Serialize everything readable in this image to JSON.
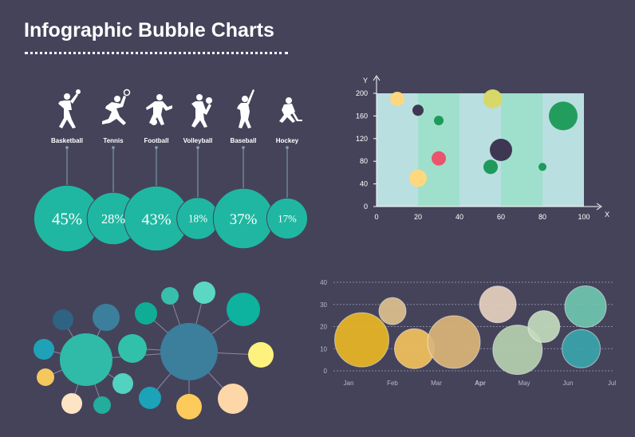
{
  "title": "Infographic Bubble Charts",
  "colors": {
    "background": "#45435a",
    "teal": "#1fb7a2"
  },
  "chart_data": [
    {
      "id": "sports",
      "type": "bubble",
      "categories": [
        "Basketball",
        "Tennis",
        "Football",
        "Volleyball",
        "Baseball",
        "Hockey"
      ],
      "values": [
        45,
        28,
        43,
        18,
        37,
        17
      ],
      "value_labels": [
        "45%",
        "28%",
        "43%",
        "18%",
        "37%",
        "17%"
      ]
    },
    {
      "id": "scatter",
      "type": "scatter",
      "xlabel": "X",
      "ylabel": "Y",
      "xlim": [
        0,
        100
      ],
      "ylim": [
        0,
        200
      ],
      "xticks": [
        "0",
        "20",
        "40",
        "60",
        "80",
        "100"
      ],
      "yticks": [
        "0",
        "40",
        "80",
        "120",
        "160",
        "200"
      ],
      "bands": [
        {
          "from": 0,
          "to": 20,
          "color": "#b9dfe1"
        },
        {
          "from": 20,
          "to": 40,
          "color": "#9fe0cc"
        },
        {
          "from": 40,
          "to": 60,
          "color": "#b9dfe1"
        },
        {
          "from": 60,
          "to": 80,
          "color": "#9fe0cc"
        },
        {
          "from": 80,
          "to": 100,
          "color": "#b9dfe1"
        }
      ],
      "points": [
        {
          "x": 10,
          "y": 190,
          "size": 9,
          "color": "#fdd87e"
        },
        {
          "x": 20,
          "y": 170,
          "size": 7,
          "color": "#3e3753"
        },
        {
          "x": 30,
          "y": 152,
          "size": 6,
          "color": "#1f9a5b"
        },
        {
          "x": 56,
          "y": 190,
          "size": 12,
          "color": "#d7d86a"
        },
        {
          "x": 90,
          "y": 160,
          "size": 18,
          "color": "#239d5e"
        },
        {
          "x": 60,
          "y": 100,
          "size": 14,
          "color": "#3e3753"
        },
        {
          "x": 30,
          "y": 85,
          "size": 9,
          "color": "#e8556c"
        },
        {
          "x": 55,
          "y": 70,
          "size": 9,
          "color": "#1f9a5b"
        },
        {
          "x": 80,
          "y": 70,
          "size": 5,
          "color": "#1f9a5b"
        },
        {
          "x": 20,
          "y": 50,
          "size": 11,
          "color": "#fdd87e"
        }
      ]
    },
    {
      "id": "network",
      "type": "network bubble",
      "nodes": [
        {
          "size": 33,
          "color": "#2fbba8"
        },
        {
          "size": 36,
          "color": "#3b7f9d"
        },
        {
          "size": 13,
          "color": "#2f6383"
        },
        {
          "size": 17,
          "color": "#3b7f9d"
        },
        {
          "size": 13,
          "color": "#1fa2b7"
        },
        {
          "size": 11,
          "color": "#f5c85e"
        },
        {
          "size": 13,
          "color": "#fde4c4"
        },
        {
          "size": 11,
          "color": "#22ad9c"
        },
        {
          "size": 13,
          "color": "#52d2c0"
        },
        {
          "size": 18,
          "color": "#31c1aa"
        },
        {
          "size": 14,
          "color": "#10ad96"
        },
        {
          "size": 11,
          "color": "#37beac"
        },
        {
          "size": 14,
          "color": "#5cd7c2"
        },
        {
          "size": 21,
          "color": "#0db39f"
        },
        {
          "size": 16,
          "color": "#fdf27e"
        },
        {
          "size": 19,
          "color": "#fdd7a8"
        },
        {
          "size": 16,
          "color": "#fdca5c"
        },
        {
          "size": 14,
          "color": "#1ba3b8"
        }
      ]
    },
    {
      "id": "monthly",
      "type": "bubble",
      "categories": [
        "Jan",
        "Feb",
        "Mar",
        "Apr",
        "May",
        "Jun",
        "Jul"
      ],
      "yticks": [
        "0",
        "10",
        "20",
        "30",
        "40"
      ],
      "ylim": [
        0,
        40
      ],
      "grid": true,
      "points": [
        {
          "x": 0.3,
          "y": 14,
          "size": 34,
          "color": "#e8b624"
        },
        {
          "x": 1.0,
          "y": 27,
          "size": 17,
          "color": "#ddc08e"
        },
        {
          "x": 1.5,
          "y": 10,
          "size": 25,
          "color": "#f2c15c"
        },
        {
          "x": 2.4,
          "y": 13,
          "size": 33,
          "color": "#dbb578"
        },
        {
          "x": 3.4,
          "y": 30,
          "size": 23,
          "color": "#e6d0bd"
        },
        {
          "x": 3.85,
          "y": 9.5,
          "size": 31,
          "color": "#b5cfae"
        },
        {
          "x": 4.45,
          "y": 20,
          "size": 20,
          "color": "#c3dbbd"
        },
        {
          "x": 5.4,
          "y": 29,
          "size": 26,
          "color": "#6ec6ae"
        },
        {
          "x": 5.3,
          "y": 10,
          "size": 24,
          "color": "#3aa5ac"
        }
      ]
    }
  ]
}
